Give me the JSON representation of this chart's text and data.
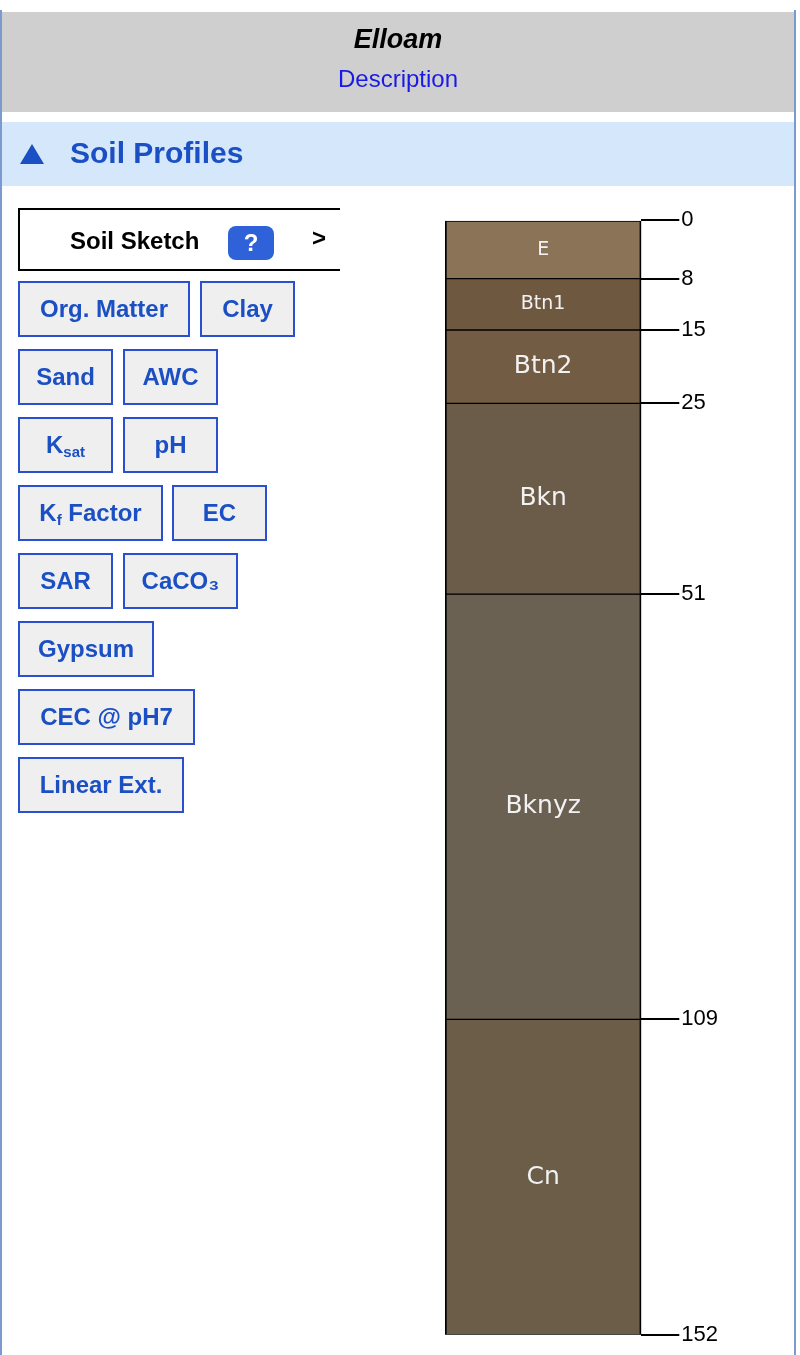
{
  "chart_data": {
    "type": "bar",
    "stacked": true,
    "title": "Elloam",
    "subtitle": "Soil Profiles",
    "categories": [
      null
    ],
    "series": [
      {
        "name": "E",
        "color": "#8b7358",
        "values": [
          8
        ]
      },
      {
        "name": "Btn1",
        "color": "#6f5840",
        "values": [
          7
        ]
      },
      {
        "name": "Btn2",
        "color": "#735c44",
        "values": [
          10
        ]
      },
      {
        "name": "Bkn",
        "color": "#6b5c4a",
        "values": [
          26
        ]
      },
      {
        "name": "Bknyz",
        "color": "#6b6153",
        "values": [
          58
        ]
      },
      {
        "name": "Cn",
        "color": "#6b5d48",
        "values": [
          43
        ]
      }
    ],
    "ylim": [
      152,
      0
    ],
    "yticks": [
      0,
      8,
      15,
      25,
      51,
      109,
      152
    ],
    "grid": false,
    "legend": false,
    "tick_labels": "y",
    "annotations": [
      "Description",
      "Soil Sketch",
      "?",
      ">",
      "Org. Matter",
      "Clay",
      "Sand",
      "AWC",
      "K$_{sat}$",
      "pH",
      "K$_{f}$ Factor",
      "EC",
      "SAR",
      "CaCO₃",
      "Gypsum",
      "CEC @ pH7",
      "Linear Ext."
    ]
  }
}
